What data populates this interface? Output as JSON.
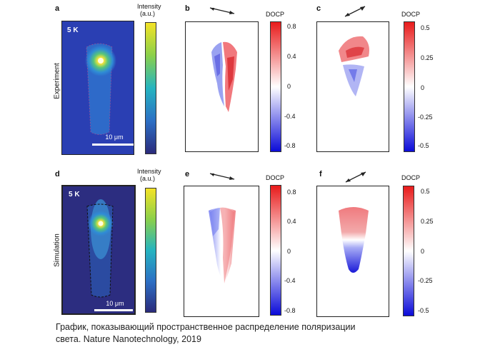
{
  "panels": {
    "a": {
      "letter": "a",
      "row_label": "Experiment",
      "temperature": "5 K",
      "scale_label": "10 μm"
    },
    "b": {
      "letter": "b"
    },
    "c": {
      "letter": "c"
    },
    "d": {
      "letter": "d",
      "row_label": "Simulation",
      "temperature": "5 K",
      "scale_label": "10 μm"
    },
    "e": {
      "letter": "e"
    },
    "f": {
      "letter": "f"
    }
  },
  "colorbars": {
    "intensity": {
      "title_line1": "Intensity",
      "title_line2": "(a.u.)"
    },
    "docp_wide": {
      "title": "DOCP",
      "ticks": [
        "0.8",
        "0.4",
        "0",
        "-0.4",
        "-0.8"
      ]
    },
    "docp_narrow": {
      "title": "DOCP",
      "ticks": [
        "0.5",
        "0.25",
        "0",
        "-0.25",
        "-0.5"
      ]
    }
  },
  "colors": {
    "background_blue": "#2a3aa0",
    "hot_spot": "#ffe83a",
    "docp_positive": "#e0202a",
    "docp_negative": "#1a1ad8"
  },
  "caption": {
    "line1": "График, показывающий пространственное распределение поляризации",
    "line2": "света. Nature Nanotechnology, 2019"
  }
}
